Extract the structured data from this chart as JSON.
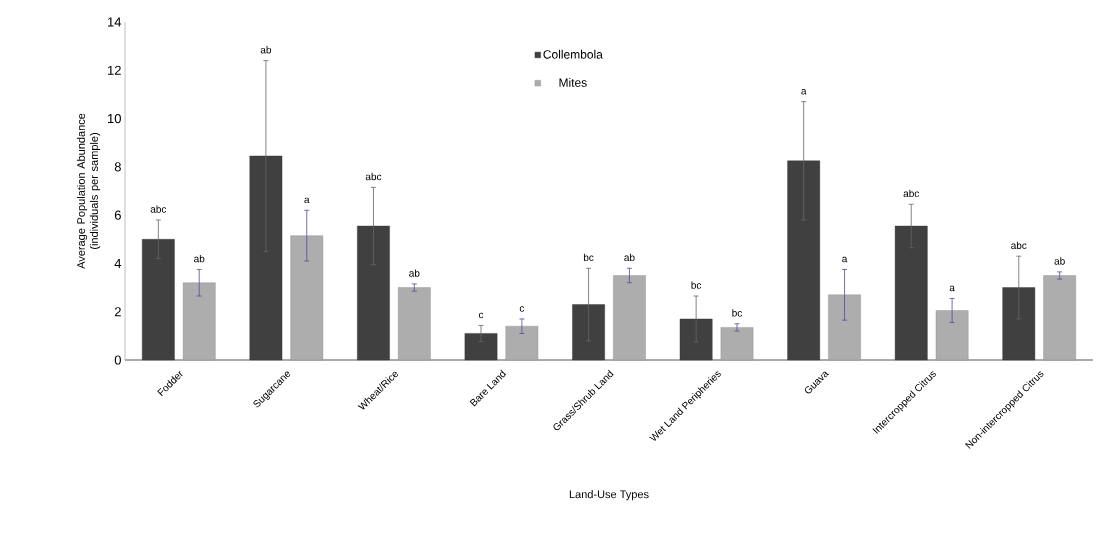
{
  "chart_data": {
    "type": "bar",
    "xlabel": "Land-Use Types",
    "ylabel": "Average Population Abundance (individuals per sample)",
    "categories": [
      "Fodder",
      "Sugarcane",
      "Wheat/Rice",
      "Bare Land",
      "Grass/Shrub Land",
      "Wet Land Peripheries",
      "Guava",
      "Intercropped Citrus",
      "Non-intercropped Citrus"
    ],
    "series": [
      {
        "name": "Collembola",
        "color": "#404040",
        "values": [
          5.0,
          8.45,
          5.55,
          1.1,
          2.3,
          1.7,
          8.25,
          5.55,
          3.0
        ],
        "errors": [
          0.8,
          3.95,
          1.6,
          0.33,
          1.5,
          0.95,
          2.45,
          0.9,
          1.3
        ]
      },
      {
        "name": "Mites",
        "color": "#adadad",
        "values": [
          3.2,
          5.15,
          3.0,
          1.4,
          3.5,
          1.35,
          2.7,
          2.05,
          3.5
        ],
        "errors": [
          0.55,
          1.05,
          0.15,
          0.3,
          0.3,
          0.15,
          1.05,
          0.5,
          0.15
        ]
      }
    ],
    "ylim": [
      0,
      14
    ],
    "yticks": [
      0,
      2,
      4,
      6,
      8,
      10,
      12,
      14
    ],
    "grid": false,
    "legend": "top",
    "annotations": [
      "abc",
      "ab",
      "ab",
      "a",
      "abc",
      "ab",
      "c",
      "c",
      "bc",
      "ab",
      "bc",
      "bc",
      "a",
      "a",
      "abc",
      "a",
      "abc",
      "ab"
    ]
  }
}
